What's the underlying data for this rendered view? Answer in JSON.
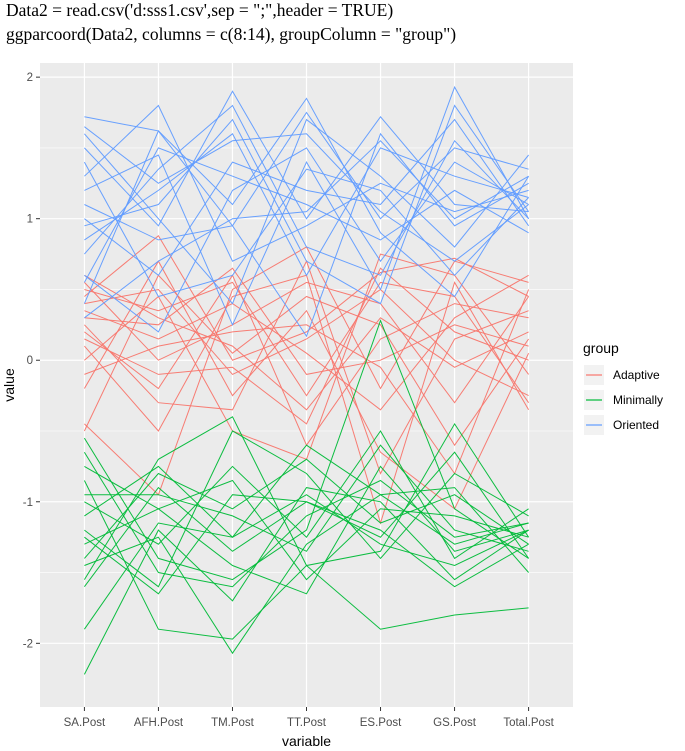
{
  "code": {
    "line1": "Data2 = read.csv('d:sss1.csv',sep = \";\",header = TRUE)",
    "line2": "ggparcoord(Data2, columns = c(8:14), groupColumn = \"group\")"
  },
  "chart_data": {
    "type": "line",
    "subtype": "parallel-coordinates",
    "xlabel": "variable",
    "ylabel": "value",
    "categories": [
      "SA.Post",
      "AFH.Post",
      "TM.Post",
      "TT.Post",
      "ES.Post",
      "GS.Post",
      "Total.Post"
    ],
    "ylim": [
      -2.45,
      2.1
    ],
    "yticks": [
      -2,
      -1,
      0,
      1,
      2
    ],
    "grid": true,
    "legend_title": "group",
    "legend_position": "right",
    "colors": {
      "Adaptive": "#F8766D",
      "Minimally": "#00BA38",
      "Oriented": "#619CFF",
      "panel": "#EBEBEB",
      "grid": "#FFFFFF"
    },
    "series": [
      {
        "name": "Adaptive",
        "lines": [
          [
            0.45,
            0.88,
            0.0,
            0.2,
            0.62,
            0.72,
            0.45
          ],
          [
            0.3,
            0.25,
            0.65,
            -0.1,
            0.0,
            0.25,
            0.1
          ],
          [
            0.1,
            -0.5,
            0.45,
            0.6,
            -1.15,
            0.55,
            -0.35
          ],
          [
            0.6,
            0.3,
            0.1,
            -0.35,
            0.3,
            -0.05,
            0.2
          ],
          [
            -0.45,
            -0.95,
            0.5,
            0.8,
            -0.2,
            0.7,
            0.55
          ],
          [
            0.4,
            0.5,
            -0.1,
            0.15,
            0.5,
            0.0,
            -0.25
          ],
          [
            0.2,
            -0.2,
            0.6,
            -0.6,
            0.15,
            0.4,
            0.3
          ],
          [
            -0.2,
            0.7,
            -0.25,
            0.35,
            -0.65,
            -1.05,
            0.05
          ],
          [
            0.55,
            0.0,
            0.25,
            0.55,
            0.4,
            -0.3,
            0.45
          ],
          [
            0.0,
            0.45,
            -0.5,
            -0.7,
            0.75,
            0.6,
            -0.1
          ],
          [
            0.35,
            0.15,
            0.4,
            0.05,
            -0.35,
            0.3,
            0.6
          ],
          [
            -0.5,
            0.6,
            0.05,
            0.45,
            0.25,
            -0.6,
            0.15
          ],
          [
            0.25,
            -0.3,
            -0.35,
            0.7,
            -0.8,
            0.15,
            0.35
          ],
          [
            0.5,
            0.35,
            0.55,
            -0.25,
            0.55,
            0.45,
            -0.3
          ],
          [
            -0.1,
            0.1,
            0.2,
            0.25,
            -0.05,
            -0.8,
            0.5
          ],
          [
            0.15,
            -0.1,
            -0.05,
            -0.45,
            0.65,
            0.2,
            0.0
          ]
        ]
      },
      {
        "name": "Minimally",
        "lines": [
          [
            -1.25,
            -1.65,
            -0.95,
            -1.0,
            -1.2,
            -1.6,
            -1.3
          ],
          [
            -1.9,
            -1.15,
            -1.25,
            -0.6,
            -0.95,
            -1.3,
            -1.15
          ],
          [
            -0.55,
            -1.4,
            -1.55,
            -1.2,
            0.28,
            -1.05,
            -1.4
          ],
          [
            -1.55,
            -0.7,
            -0.4,
            -1.45,
            -1.35,
            -0.45,
            -1.25
          ],
          [
            -2.22,
            -1.2,
            -1.7,
            -0.9,
            -1.0,
            -1.55,
            -1.2
          ],
          [
            -0.95,
            -0.95,
            -1.1,
            -1.35,
            -0.6,
            -1.2,
            -1.35
          ],
          [
            -1.2,
            -1.6,
            -0.5,
            -0.8,
            -1.4,
            -0.8,
            -1.1
          ],
          [
            -0.75,
            -1.05,
            -1.45,
            -1.65,
            -0.75,
            -1.35,
            -1.2
          ],
          [
            -1.4,
            -0.8,
            -1.05,
            -0.7,
            -1.15,
            -0.95,
            -1.3
          ],
          [
            -1.0,
            -1.3,
            -0.75,
            -1.25,
            -0.5,
            -1.4,
            -1.05
          ],
          [
            -1.6,
            -0.9,
            -1.35,
            -1.0,
            -1.25,
            -0.65,
            -1.4
          ],
          [
            -0.65,
            -1.5,
            -1.6,
            -1.1,
            -0.85,
            -1.25,
            -1.15
          ],
          [
            -1.3,
            -1.05,
            -0.85,
            -1.55,
            -1.05,
            -1.1,
            -1.25
          ],
          [
            -0.85,
            -1.9,
            -1.97,
            -1.45,
            -1.9,
            -1.8,
            -1.75
          ],
          [
            -1.1,
            -0.75,
            -1.25,
            -0.95,
            -1.3,
            -1.45,
            -1.2
          ],
          [
            -1.45,
            -1.25,
            -2.07,
            -1.3,
            -0.95,
            -0.9,
            -1.5
          ]
        ]
      },
      {
        "name": "Oriented",
        "lines": [
          [
            1.72,
            1.62,
            0.95,
            1.75,
            1.0,
            1.5,
            1.35
          ],
          [
            1.5,
            0.95,
            1.9,
            1.0,
            1.72,
            1.1,
            1.05
          ],
          [
            1.2,
            1.45,
            0.25,
            1.4,
            0.5,
            1.93,
            1.0
          ],
          [
            0.85,
            1.2,
            1.6,
            0.6,
            1.5,
            1.3,
            1.15
          ],
          [
            0.4,
            1.62,
            1.1,
            1.85,
            0.9,
            0.45,
            1.3
          ],
          [
            1.0,
            0.6,
            1.4,
            1.2,
            1.1,
            1.7,
            0.95
          ],
          [
            1.3,
            1.8,
            0.7,
            0.95,
            1.25,
            1.05,
            1.2
          ],
          [
            0.6,
            0.2,
            1.2,
            1.5,
            0.7,
            1.4,
            1.1
          ],
          [
            1.6,
            1.0,
            0.4,
            1.7,
            1.3,
            0.8,
            1.45
          ],
          [
            0.75,
            1.35,
            1.8,
            0.8,
            0.6,
            1.55,
            1.0
          ],
          [
            1.1,
            0.85,
            0.95,
            0.17,
            1.6,
            0.95,
            1.25
          ],
          [
            0.55,
            1.5,
            1.3,
            1.1,
            0.85,
            1.2,
            0.9
          ],
          [
            1.4,
            0.45,
            0.6,
            1.35,
            1.2,
            0.6,
            1.15
          ],
          [
            0.95,
            1.1,
            1.7,
            0.7,
            0.4,
            1.8,
            1.05
          ],
          [
            0.3,
            0.7,
            1.0,
            1.05,
            1.55,
            1.0,
            1.3
          ],
          [
            1.65,
            1.25,
            1.55,
            1.6,
            1.05,
            0.7,
            1.1
          ]
        ]
      }
    ]
  }
}
